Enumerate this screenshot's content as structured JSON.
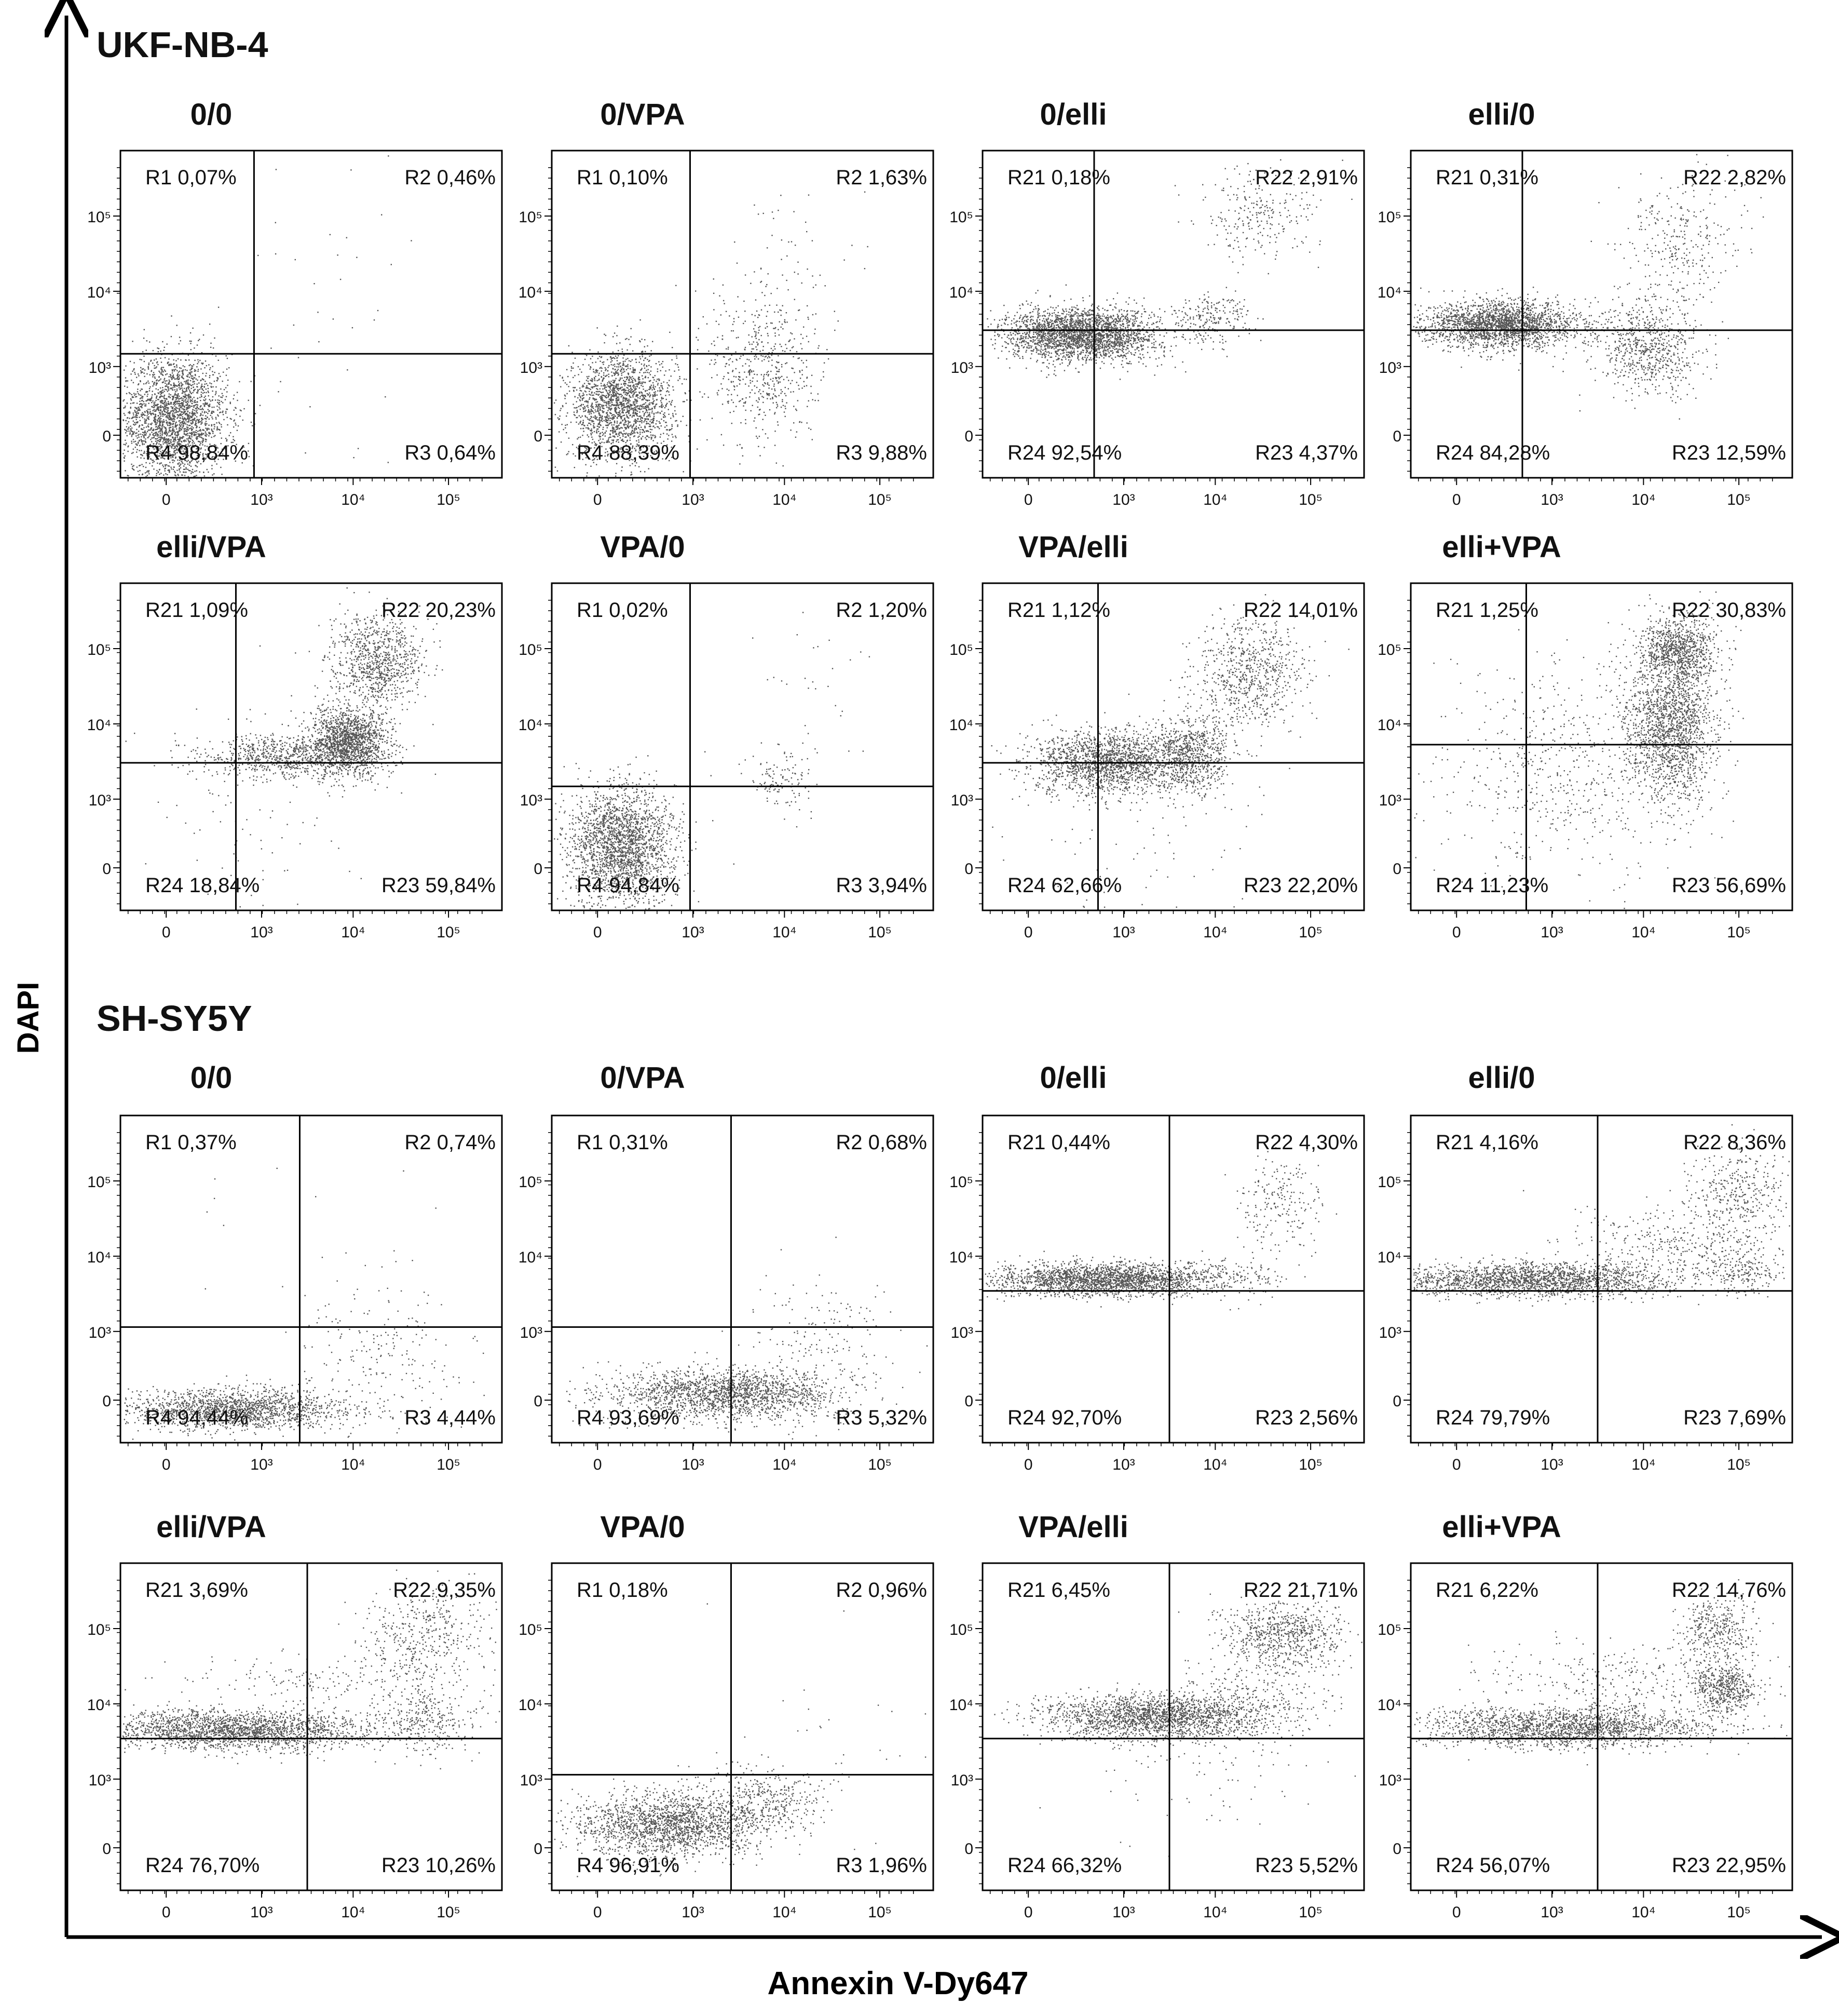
{
  "axes": {
    "y_label": "DAPI",
    "x_label": "Annexin V-Dy647"
  },
  "colors": {
    "frame": "#000000",
    "dots": "#555555",
    "text": "#111111"
  },
  "tick_labels": {
    "x": [
      "0",
      "10³",
      "10⁴",
      "10⁵"
    ],
    "y": [
      "0",
      "10³",
      "10⁴",
      "10⁵"
    ]
  },
  "groups": [
    {
      "title": "UKF-NB-4",
      "rows": [
        [
          {
            "title": "0/0",
            "q": [
              "R1 0,07%",
              "R2 0,46%",
              "R4 98,84%",
              "R3 0,64%"
            ],
            "gate": {
              "x": "3.6e3",
              "y": "4.6e3"
            },
            "pop": "ukf-neg"
          },
          {
            "title": "0/VPA",
            "q": [
              "R1 0,10%",
              "R2 1,63%",
              "R4 88,39%",
              "R3 9,88%"
            ],
            "gate": {
              "x": "4.0e3",
              "y": "4.6e3"
            },
            "pop": "ukf-vpa"
          },
          {
            "title": "0/elli",
            "q": [
              "R21 0,18%",
              "R22 2,91%",
              "R24 92,54%",
              "R23 4,37%"
            ],
            "gate": {
              "x": "2.2e3",
              "y": "8.5e3"
            },
            "pop": "ukf-elli"
          },
          {
            "title": "elli/0",
            "q": [
              "R21 0,31%",
              "R22 2,82%",
              "R24 84,28%",
              "R23 12,59%"
            ],
            "gate": {
              "x": "2.2e3",
              "y": "8.5e3"
            },
            "pop": "ukf-elli0"
          }
        ],
        [
          {
            "title": "elli/VPA",
            "q": [
              "R21 1,09%",
              "R22 20,23%",
              "R24 18,84%",
              "R23 59,84%"
            ],
            "gate": {
              "x": "2.4e3",
              "y": "8.5e3"
            },
            "pop": "ukf-ellivpa"
          },
          {
            "title": "VPA/0",
            "q": [
              "R1 0,02%",
              "R2 1,20%",
              "R4 94,84%",
              "R3 3,94%"
            ],
            "gate": {
              "x": "4.0e3",
              "y": "4.6e3"
            },
            "pop": "ukf-vpa0"
          },
          {
            "title": "VPA/elli",
            "q": [
              "R21 1,12%",
              "R22 14,01%",
              "R24 62,66%",
              "R23 22,20%"
            ],
            "gate": {
              "x": "2.4e3",
              "y": "8.5e3"
            },
            "pop": "ukf-vpaelli"
          },
          {
            "title": "elli+VPA",
            "q": [
              "R21 1,25%",
              "R22 30,83%",
              "R24 11,23%",
              "R23 56,69%"
            ],
            "gate": {
              "x": "2.4e3",
              "y": "1.4e4"
            },
            "pop": "ukf-combo"
          }
        ]
      ]
    },
    {
      "title": "SH-SY5Y",
      "rows": [
        [
          {
            "title": "0/0",
            "q": [
              "R1 0,37%",
              "R2 0,74%",
              "R4 94,44%",
              "R3 4,44%"
            ],
            "gate": {
              "x": "1.0e4",
              "y": "3.7e3"
            },
            "pop": "sh-neg"
          },
          {
            "title": "0/VPA",
            "q": [
              "R1 0,31%",
              "R2 0,68%",
              "R4 93,69%",
              "R3 5,32%"
            ],
            "gate": {
              "x": "1.0e4",
              "y": "3.7e3"
            },
            "pop": "sh-neg2"
          },
          {
            "title": "0/elli",
            "q": [
              "R21 0,44%",
              "R22 4,30%",
              "R24 92,70%",
              "R23 2,56%"
            ],
            "gate": {
              "x": "1.2e4",
              "y": "9.5e3"
            },
            "pop": "sh-elli"
          },
          {
            "title": "elli/0",
            "q": [
              "R21 4,16%",
              "R22 8,36%",
              "R24 79,79%",
              "R23 7,69%"
            ],
            "gate": {
              "x": "1.2e4",
              "y": "9.5e3"
            },
            "pop": "sh-elli0"
          }
        ],
        [
          {
            "title": "elli/VPA",
            "q": [
              "R21 3,69%",
              "R22 9,35%",
              "R24 76,70%",
              "R23 10,26%"
            ],
            "gate": {
              "x": "1.2e4",
              "y": "9.5e3"
            },
            "pop": "sh-ellivpa"
          },
          {
            "title": "VPA/0",
            "q": [
              "R1 0,18%",
              "R2 0,96%",
              "R4 96,91%",
              "R3 1,96%"
            ],
            "gate": {
              "x": "1.0e4",
              "y": "3.7e3"
            },
            "pop": "sh-vpa0"
          },
          {
            "title": "VPA/elli",
            "q": [
              "R21 6,45%",
              "R22 21,71%",
              "R24 66,32%",
              "R23 5,52%"
            ],
            "gate": {
              "x": "1.2e4",
              "y": "9.5e3"
            },
            "pop": "sh-vpaelli"
          },
          {
            "title": "elli+VPA",
            "q": [
              "R21 6,22%",
              "R22 14,76%",
              "R24 56,07%",
              "R23 22,95%"
            ],
            "gate": {
              "x": "1.2e4",
              "y": "9.5e3"
            },
            "pop": "sh-combo"
          }
        ]
      ]
    }
  ],
  "chart_data": {
    "type": "scatter",
    "xlabel": "Annexin V-Dy647",
    "ylabel": "DAPI",
    "x_scale": "biexponential (0, 10³, 10⁴, 10⁵)",
    "y_scale": "biexponential (0, 10³, 10⁴, 10⁵)",
    "panels": [
      {
        "cell_line": "UKF-NB-4",
        "treatment": "0/0",
        "quadrants": {
          "R1": 0.07,
          "R2": 0.46,
          "R4": 98.84,
          "R3": 0.64
        }
      },
      {
        "cell_line": "UKF-NB-4",
        "treatment": "0/VPA",
        "quadrants": {
          "R1": 0.1,
          "R2": 1.63,
          "R4": 88.39,
          "R3": 9.88
        }
      },
      {
        "cell_line": "UKF-NB-4",
        "treatment": "0/elli",
        "quadrants": {
          "R21": 0.18,
          "R22": 2.91,
          "R24": 92.54,
          "R23": 4.37
        }
      },
      {
        "cell_line": "UKF-NB-4",
        "treatment": "elli/0",
        "quadrants": {
          "R21": 0.31,
          "R22": 2.82,
          "R24": 84.28,
          "R23": 12.59
        }
      },
      {
        "cell_line": "UKF-NB-4",
        "treatment": "elli/VPA",
        "quadrants": {
          "R21": 1.09,
          "R22": 20.23,
          "R24": 18.84,
          "R23": 59.84
        }
      },
      {
        "cell_line": "UKF-NB-4",
        "treatment": "VPA/0",
        "quadrants": {
          "R1": 0.02,
          "R2": 1.2,
          "R4": 94.84,
          "R3": 3.94
        }
      },
      {
        "cell_line": "UKF-NB-4",
        "treatment": "VPA/elli",
        "quadrants": {
          "R21": 1.12,
          "R22": 14.01,
          "R24": 62.66,
          "R23": 22.2
        }
      },
      {
        "cell_line": "UKF-NB-4",
        "treatment": "elli+VPA",
        "quadrants": {
          "R21": 1.25,
          "R22": 30.83,
          "R24": 11.23,
          "R23": 56.69
        }
      },
      {
        "cell_line": "SH-SY5Y",
        "treatment": "0/0",
        "quadrants": {
          "R1": 0.37,
          "R2": 0.74,
          "R4": 94.44,
          "R3": 4.44
        }
      },
      {
        "cell_line": "SH-SY5Y",
        "treatment": "0/VPA",
        "quadrants": {
          "R1": 0.31,
          "R2": 0.68,
          "R4": 93.69,
          "R3": 5.32
        }
      },
      {
        "cell_line": "SH-SY5Y",
        "treatment": "0/elli",
        "quadrants": {
          "R21": 0.44,
          "R22": 4.3,
          "R24": 92.7,
          "R23": 2.56
        }
      },
      {
        "cell_line": "SH-SY5Y",
        "treatment": "elli/0",
        "quadrants": {
          "R21": 4.16,
          "R22": 8.36,
          "R24": 79.79,
          "R23": 7.69
        }
      },
      {
        "cell_line": "SH-SY5Y",
        "treatment": "elli/VPA",
        "quadrants": {
          "R21": 3.69,
          "R22": 9.35,
          "R24": 76.7,
          "R23": 10.26
        }
      },
      {
        "cell_line": "SH-SY5Y",
        "treatment": "VPA/0",
        "quadrants": {
          "R1": 0.18,
          "R2": 0.96,
          "R4": 96.91,
          "R3": 1.96
        }
      },
      {
        "cell_line": "SH-SY5Y",
        "treatment": "VPA/elli",
        "quadrants": {
          "R21": 6.45,
          "R22": 21.71,
          "R24": 66.32,
          "R23": 5.52
        }
      },
      {
        "cell_line": "SH-SY5Y",
        "treatment": "elli+VPA",
        "quadrants": {
          "R21": 6.22,
          "R22": 14.76,
          "R24": 56.07,
          "R23": 22.95
        }
      }
    ]
  }
}
